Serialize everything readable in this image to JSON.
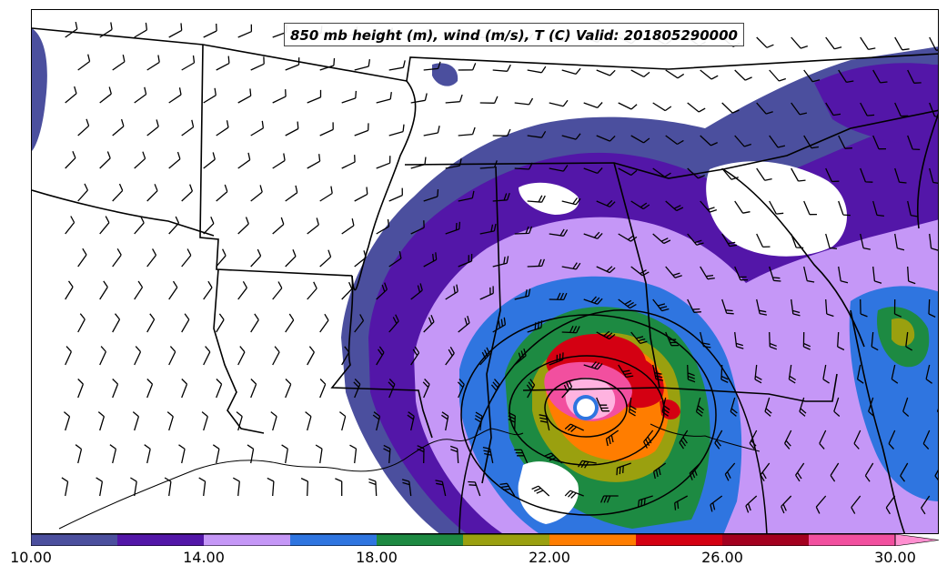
{
  "title": "850 mb height (m), wind (m/s), T (C) Valid: 201805290000",
  "colorbar": {
    "bins": [
      {
        "from": 10,
        "to": 12,
        "color": "#4b4f9e"
      },
      {
        "from": 12,
        "to": 14,
        "color": "#5316a8"
      },
      {
        "from": 14,
        "to": 16,
        "color": "#c597f7"
      },
      {
        "from": 16,
        "to": 18,
        "color": "#2f75e0"
      },
      {
        "from": 18,
        "to": 20,
        "color": "#1d8a42"
      },
      {
        "from": 20,
        "to": 22,
        "color": "#9aa00f"
      },
      {
        "from": 22,
        "to": 24,
        "color": "#ff7d00"
      },
      {
        "from": 24,
        "to": 26,
        "color": "#d40012"
      },
      {
        "from": 26,
        "to": 28,
        "color": "#a3001f"
      },
      {
        "from": 28,
        "to": 30,
        "color": "#f24f9f"
      }
    ],
    "extend_color": "#ff8fd0",
    "tick_labels": [
      "10.00",
      "14.00",
      "18.00",
      "22.00",
      "26.00",
      "30.00"
    ]
  }
}
